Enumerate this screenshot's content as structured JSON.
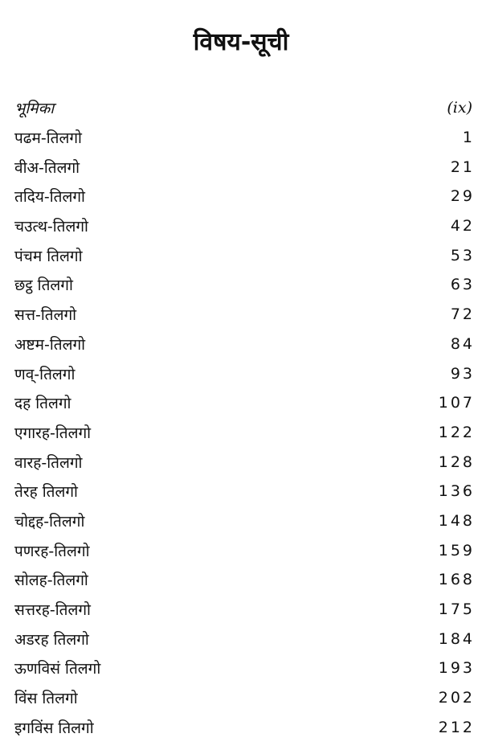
{
  "title": "विषय-सूची",
  "entries": [
    {
      "label": "भूमिका",
      "page": "(ix)"
    },
    {
      "label": "पढम-तिलगो",
      "page": "1"
    },
    {
      "label": "वीअ-तिलगो",
      "page": "21"
    },
    {
      "label": "तदिय-तिलगो",
      "page": "29"
    },
    {
      "label": "चउत्थ-तिलगो",
      "page": "42"
    },
    {
      "label": "पंचम तिलगो",
      "page": "53"
    },
    {
      "label": "छट्ठ तिलगो",
      "page": "63"
    },
    {
      "label": "सत्त-तिलगो",
      "page": "72"
    },
    {
      "label": "अष्टम-तिलगो",
      "page": "84"
    },
    {
      "label": "णव्-तिलगो",
      "page": "93"
    },
    {
      "label": "दह तिलगो",
      "page": "107"
    },
    {
      "label": "एगारह-तिलगो",
      "page": "122"
    },
    {
      "label": "वारह-तिलगो",
      "page": "128"
    },
    {
      "label": "तेरह तिलगो",
      "page": "136"
    },
    {
      "label": "चोद्दह-तिलगो",
      "page": "148"
    },
    {
      "label": "पणरह-तिलगो",
      "page": "159"
    },
    {
      "label": "सोलह-तिलगो",
      "page": "168"
    },
    {
      "label": "सत्तरह-तिलगो",
      "page": "175"
    },
    {
      "label": "अडरह तिलगो",
      "page": "184"
    },
    {
      "label": "ऊणविसं तिलगो",
      "page": "193"
    },
    {
      "label": "विंस तिलगो",
      "page": "202"
    },
    {
      "label": "इगविंस तिलगो",
      "page": "212"
    }
  ]
}
